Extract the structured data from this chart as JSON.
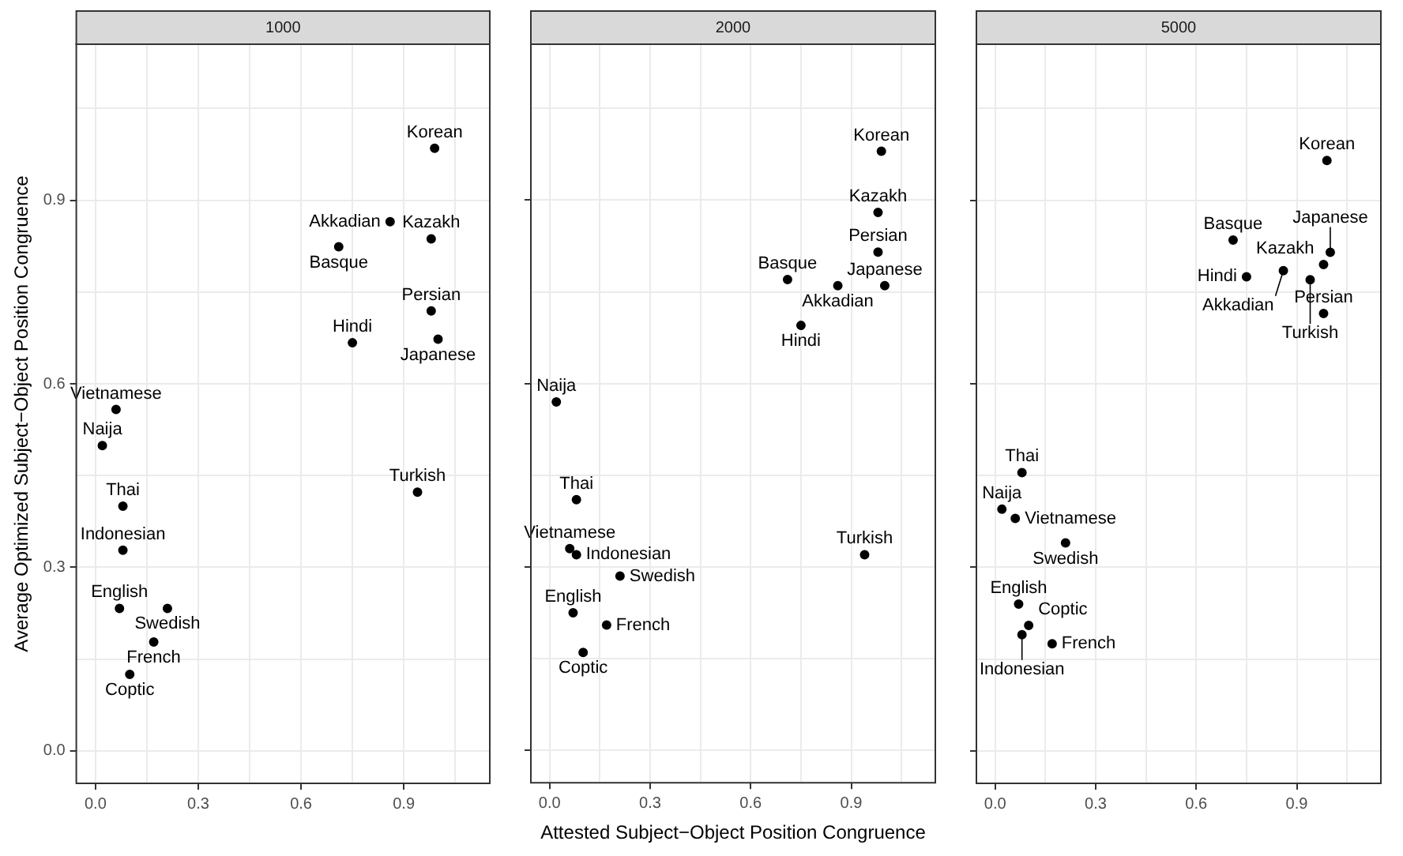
{
  "chart_data": [
    {
      "type": "scatter",
      "title": "1000",
      "ylabel": "Average Optimized Subject−Object Position Congruence",
      "marker": "circle",
      "grid": true,
      "xlim": [
        -0.056,
        1.151
      ],
      "ylim": [
        -0.053,
        1.155
      ],
      "xticks": [
        {
          "value": 0,
          "label": "0.0"
        },
        {
          "value": 0.15,
          "label": null
        },
        0.3,
        {
          "value": 0.45,
          "label": null
        },
        0.6,
        {
          "value": 0.75,
          "label": null
        },
        0.9,
        {
          "value": 1.05,
          "label": null
        }
      ],
      "yticks": [
        {
          "value": 0,
          "label": "0.0"
        },
        {
          "value": 0.15,
          "label": null
        },
        0.3,
        {
          "value": 0.45,
          "label": null
        },
        0.6,
        {
          "value": 0.75,
          "label": null
        },
        0.9,
        {
          "value": 1.05,
          "label": null
        }
      ],
      "series": [
        {
          "name": "Korean",
          "color": "#000000",
          "x": [
            0.99
          ],
          "values": [
            0.985
          ]
        },
        {
          "name": "Kazakh",
          "color": "#000000",
          "x": [
            0.98
          ],
          "values": [
            0.837
          ]
        },
        {
          "name": "Persian",
          "color": "#000000",
          "x": [
            0.98
          ],
          "values": [
            0.719
          ]
        },
        {
          "name": "Japanese",
          "color": "#000000",
          "x": [
            1.0
          ],
          "values": [
            0.673
          ]
        },
        {
          "name": "Akkadian",
          "color": "#000000",
          "x": [
            0.86
          ],
          "values": [
            0.865
          ]
        },
        {
          "name": "Basque",
          "color": "#000000",
          "x": [
            0.71
          ],
          "values": [
            0.824
          ]
        },
        {
          "name": "Hindi",
          "color": "#000000",
          "x": [
            0.75
          ],
          "values": [
            0.667
          ]
        },
        {
          "name": "Turkish",
          "color": "#000000",
          "x": [
            0.94
          ],
          "values": [
            0.423
          ]
        },
        {
          "name": "Naija",
          "color": "#000000",
          "x": [
            0.02
          ],
          "values": [
            0.499
          ]
        },
        {
          "name": "Thai",
          "color": "#000000",
          "x": [
            0.08
          ],
          "values": [
            0.4
          ]
        },
        {
          "name": "Vietnamese",
          "color": "#000000",
          "x": [
            0.06
          ],
          "values": [
            0.558
          ]
        },
        {
          "name": "Indonesian",
          "color": "#000000",
          "x": [
            0.08
          ],
          "values": [
            0.328
          ]
        },
        {
          "name": "English",
          "color": "#000000",
          "x": [
            0.07
          ],
          "values": [
            0.233
          ]
        },
        {
          "name": "Swedish",
          "color": "#000000",
          "x": [
            0.21
          ],
          "values": [
            0.233
          ]
        },
        {
          "name": "French",
          "color": "#000000",
          "x": [
            0.17
          ],
          "values": [
            0.178
          ]
        },
        {
          "name": "Coptic",
          "color": "#000000",
          "x": [
            0.1
          ],
          "values": [
            0.125
          ]
        }
      ]
    },
    {
      "type": "scatter",
      "title": "2000",
      "xlabel": "Attested Subject−Object Position Congruence",
      "marker": "circle",
      "grid": true,
      "tick_labels": "x",
      "xlim": [
        -0.056,
        1.151
      ],
      "ylim": [
        -0.053,
        1.155
      ],
      "xticks": [
        {
          "value": 0,
          "label": "0.0"
        },
        {
          "value": 0.15,
          "label": null
        },
        0.3,
        {
          "value": 0.45,
          "label": null
        },
        0.6,
        {
          "value": 0.75,
          "label": null
        },
        0.9,
        {
          "value": 1.05,
          "label": null
        }
      ],
      "yticks": [
        0,
        {
          "value": 0.15,
          "label": null
        },
        0.3,
        {
          "value": 0.45,
          "label": null
        },
        0.6,
        {
          "value": 0.75,
          "label": null
        },
        0.9,
        {
          "value": 1.05,
          "label": null
        }
      ],
      "series": [
        {
          "name": "Korean",
          "color": "#000000",
          "x": [
            0.99
          ],
          "values": [
            0.98
          ]
        },
        {
          "name": "Kazakh",
          "color": "#000000",
          "x": [
            0.98
          ],
          "values": [
            0.88
          ]
        },
        {
          "name": "Persian",
          "color": "#000000",
          "x": [
            0.98
          ],
          "values": [
            0.815
          ]
        },
        {
          "name": "Japanese",
          "color": "#000000",
          "x": [
            1.0
          ],
          "values": [
            0.76
          ]
        },
        {
          "name": "Akkadian",
          "color": "#000000",
          "x": [
            0.86
          ],
          "values": [
            0.76
          ]
        },
        {
          "name": "Basque",
          "color": "#000000",
          "x": [
            0.71
          ],
          "values": [
            0.77
          ]
        },
        {
          "name": "Hindi",
          "color": "#000000",
          "x": [
            0.75
          ],
          "values": [
            0.695
          ]
        },
        {
          "name": "Turkish",
          "color": "#000000",
          "x": [
            0.94
          ],
          "values": [
            0.32
          ]
        },
        {
          "name": "Naija",
          "color": "#000000",
          "x": [
            0.02
          ],
          "values": [
            0.57
          ]
        },
        {
          "name": "Thai",
          "color": "#000000",
          "x": [
            0.08
          ],
          "values": [
            0.41
          ]
        },
        {
          "name": "Vietnamese",
          "color": "#000000",
          "x": [
            0.06
          ],
          "values": [
            0.33
          ]
        },
        {
          "name": "Indonesian",
          "color": "#000000",
          "x": [
            0.08
          ],
          "values": [
            0.32
          ]
        },
        {
          "name": "English",
          "color": "#000000",
          "x": [
            0.07
          ],
          "values": [
            0.225
          ]
        },
        {
          "name": "Swedish",
          "color": "#000000",
          "x": [
            0.21
          ],
          "values": [
            0.285
          ]
        },
        {
          "name": "French",
          "color": "#000000",
          "x": [
            0.17
          ],
          "values": [
            0.205
          ]
        },
        {
          "name": "Coptic",
          "color": "#000000",
          "x": [
            0.1
          ],
          "values": [
            0.16
          ]
        }
      ]
    },
    {
      "type": "scatter",
      "title": "5000",
      "marker": "circle",
      "grid": true,
      "tick_labels": "x",
      "xlim": [
        -0.056,
        1.151
      ],
      "ylim": [
        -0.053,
        1.155
      ],
      "xticks": [
        {
          "value": 0,
          "label": "0.0"
        },
        {
          "value": 0.15,
          "label": null
        },
        0.3,
        {
          "value": 0.45,
          "label": null
        },
        0.6,
        {
          "value": 0.75,
          "label": null
        },
        0.9,
        {
          "value": 1.05,
          "label": null
        }
      ],
      "yticks": [
        0,
        {
          "value": 0.15,
          "label": null
        },
        0.3,
        {
          "value": 0.45,
          "label": null
        },
        0.6,
        {
          "value": 0.75,
          "label": null
        },
        0.9,
        {
          "value": 1.05,
          "label": null
        }
      ],
      "series": [
        {
          "name": "Korean",
          "color": "#000000",
          "x": [
            0.99
          ],
          "values": [
            0.965
          ]
        },
        {
          "name": "Kazakh",
          "color": "#000000",
          "x": [
            0.98
          ],
          "values": [
            0.795
          ]
        },
        {
          "name": "Persian",
          "color": "#000000",
          "x": [
            0.98
          ],
          "values": [
            0.715
          ]
        },
        {
          "name": "Japanese",
          "color": "#000000",
          "x": [
            1.0
          ],
          "values": [
            0.815
          ]
        },
        {
          "name": "Akkadian",
          "color": "#000000",
          "x": [
            0.86
          ],
          "values": [
            0.785
          ]
        },
        {
          "name": "Basque",
          "color": "#000000",
          "x": [
            0.71
          ],
          "values": [
            0.835
          ]
        },
        {
          "name": "Hindi",
          "color": "#000000",
          "x": [
            0.75
          ],
          "values": [
            0.775
          ]
        },
        {
          "name": "Turkish",
          "color": "#000000",
          "x": [
            0.94
          ],
          "values": [
            0.77
          ]
        },
        {
          "name": "Naija",
          "color": "#000000",
          "x": [
            0.02
          ],
          "values": [
            0.395
          ]
        },
        {
          "name": "Thai",
          "color": "#000000",
          "x": [
            0.08
          ],
          "values": [
            0.455
          ]
        },
        {
          "name": "Vietnamese",
          "color": "#000000",
          "x": [
            0.06
          ],
          "values": [
            0.38
          ]
        },
        {
          "name": "Indonesian",
          "color": "#000000",
          "x": [
            0.08
          ],
          "values": [
            0.19
          ]
        },
        {
          "name": "English",
          "color": "#000000",
          "x": [
            0.07
          ],
          "values": [
            0.24
          ]
        },
        {
          "name": "Swedish",
          "color": "#000000",
          "x": [
            0.21
          ],
          "values": [
            0.34
          ]
        },
        {
          "name": "French",
          "color": "#000000",
          "x": [
            0.17
          ],
          "values": [
            0.175
          ]
        },
        {
          "name": "Coptic",
          "color": "#000000",
          "x": [
            0.1
          ],
          "values": [
            0.205
          ]
        }
      ]
    }
  ]
}
